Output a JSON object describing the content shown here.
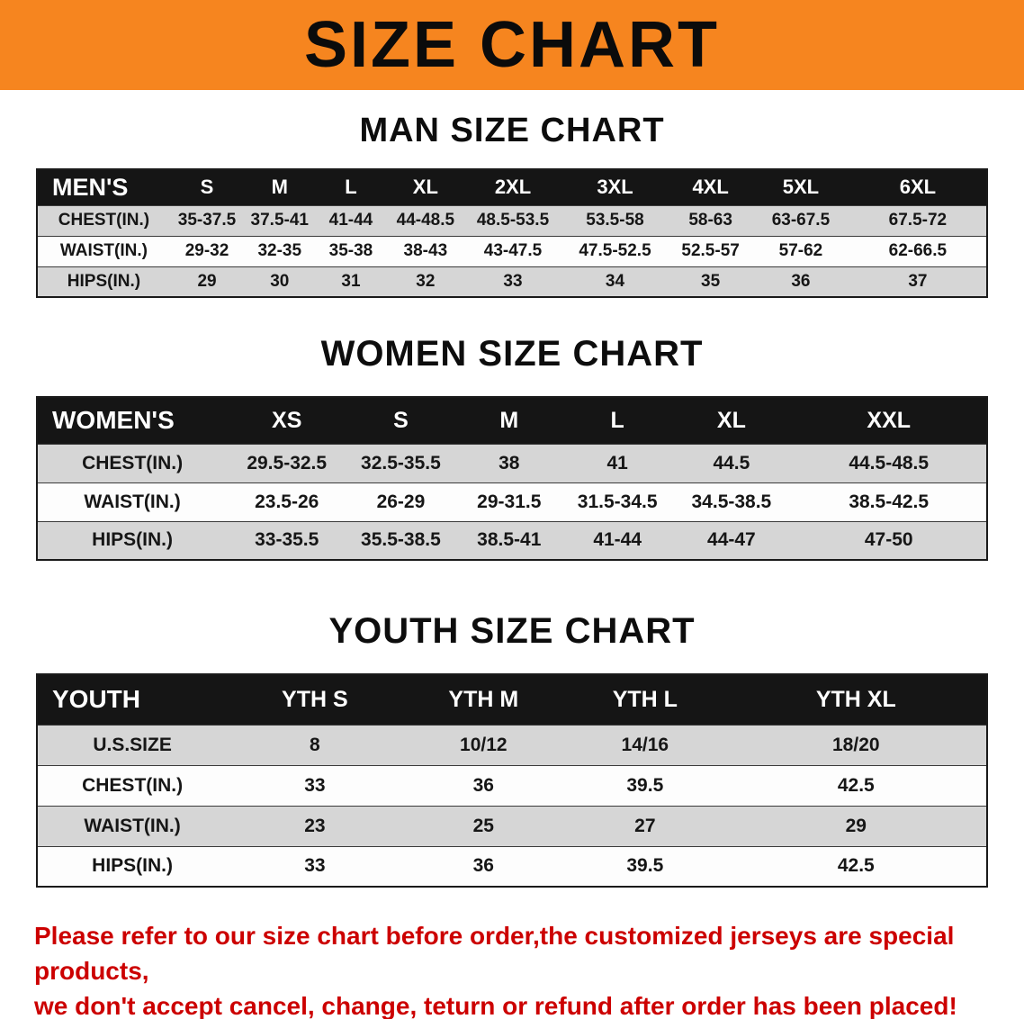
{
  "banner": {
    "title": "SIZE CHART",
    "bg_color": "#F6851F",
    "text_color": "#0B0B0B"
  },
  "chart_data": [
    {
      "type": "table",
      "title": "MAN SIZE CHART",
      "corner_label": "MEN'S",
      "columns": [
        "S",
        "M",
        "L",
        "XL",
        "2XL",
        "3XL",
        "4XL",
        "5XL",
        "6XL"
      ],
      "rows": [
        {
          "label": "CHEST(IN.)",
          "values": [
            "35-37.5",
            "37.5-41",
            "41-44",
            "44-48.5",
            "48.5-53.5",
            "53.5-58",
            "58-63",
            "63-67.5",
            "67.5-72"
          ]
        },
        {
          "label": "WAIST(IN.)",
          "values": [
            "29-32",
            "32-35",
            "35-38",
            "38-43",
            "43-47.5",
            "47.5-52.5",
            "52.5-57",
            "57-62",
            "62-66.5"
          ]
        },
        {
          "label": "HIPS(IN.)",
          "values": [
            "29",
            "30",
            "31",
            "32",
            "33",
            "34",
            "35",
            "36",
            "37"
          ]
        }
      ]
    },
    {
      "type": "table",
      "title": "WOMEN SIZE CHART",
      "corner_label": "WOMEN'S",
      "columns": [
        "XS",
        "S",
        "M",
        "L",
        "XL",
        "XXL"
      ],
      "rows": [
        {
          "label": "CHEST(IN.)",
          "values": [
            "29.5-32.5",
            "32.5-35.5",
            "38",
            "41",
            "44.5",
            "44.5-48.5"
          ]
        },
        {
          "label": "WAIST(IN.)",
          "values": [
            "23.5-26",
            "26-29",
            "29-31.5",
            "31.5-34.5",
            "34.5-38.5",
            "38.5-42.5"
          ]
        },
        {
          "label": "HIPS(IN.)",
          "values": [
            "33-35.5",
            "35.5-38.5",
            "38.5-41",
            "41-44",
            "44-47",
            "47-50"
          ]
        }
      ]
    },
    {
      "type": "table",
      "title": "YOUTH SIZE CHART",
      "corner_label": "YOUTH",
      "columns": [
        "YTH S",
        "YTH M",
        "YTH L",
        "YTH XL"
      ],
      "rows": [
        {
          "label": "U.S.SIZE",
          "values": [
            "8",
            "10/12",
            "14/16",
            "18/20"
          ]
        },
        {
          "label": "CHEST(IN.)",
          "values": [
            "33",
            "36",
            "39.5",
            "42.5"
          ]
        },
        {
          "label": "WAIST(IN.)",
          "values": [
            "23",
            "25",
            "27",
            "29"
          ]
        },
        {
          "label": "HIPS(IN.)",
          "values": [
            "33",
            "36",
            "39.5",
            "42.5"
          ]
        }
      ]
    }
  ],
  "disclaimer": {
    "color": "#CC0000",
    "line1": "Please refer to our size chart before order,the customized jerseys are special products,",
    "line2": "we don't accept cancel, change, teturn or refund after order has been placed!"
  }
}
